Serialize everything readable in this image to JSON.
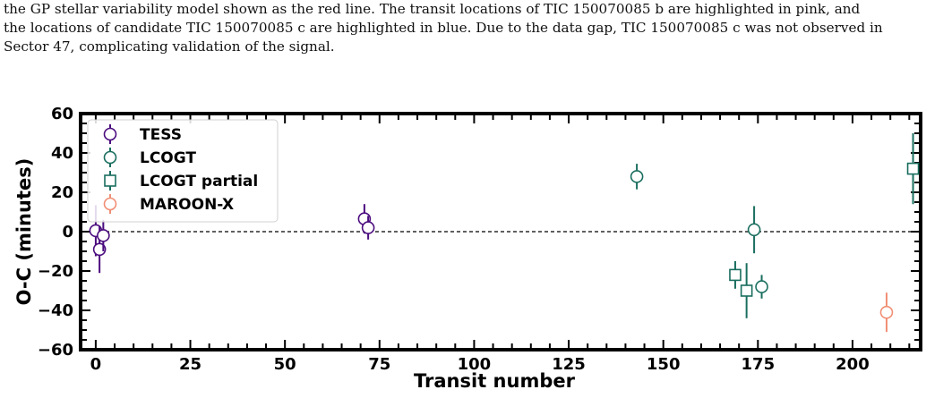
{
  "caption_lines": [
    "the GP stellar variability model shown as the red line. The transit locations of TIC 150070085 b are highlighted in pink, and",
    "the locations of candidate TIC 150070085 c are highlighted in blue. Due to the data gap, TIC 150070085 c was not observed in",
    "Sector 47, complicating validation of the signal."
  ],
  "colors": {
    "TESS": "#4b0c7e",
    "LCOGT": "#1a6e5f",
    "LCOGT partial": "#1a6e5f",
    "MAROON-X": "#f08f75",
    "reference_line": "#000000"
  },
  "chart_data": {
    "type": "scatter",
    "xlabel": "Transit number",
    "ylabel": "O-C (minutes)",
    "xlim": [
      -4,
      218
    ],
    "ylim": [
      -60,
      60
    ],
    "xticks": [
      0,
      25,
      50,
      75,
      100,
      125,
      150,
      175,
      200
    ],
    "yticks": [
      -60,
      -40,
      -20,
      0,
      20,
      40,
      60
    ],
    "legend_position": "top-left",
    "reference_line_y": 0,
    "series": [
      {
        "name": "TESS",
        "marker": "circle",
        "points": [
          {
            "x": 0,
            "y": 0.5,
            "err": 13
          },
          {
            "x": 1,
            "y": -9,
            "err": 12
          },
          {
            "x": 2,
            "y": -2,
            "err": 8
          },
          {
            "x": 71,
            "y": 6.5,
            "err": 7.5
          },
          {
            "x": 72,
            "y": 2,
            "err": 6
          }
        ]
      },
      {
        "name": "LCOGT",
        "marker": "circle",
        "points": [
          {
            "x": 143,
            "y": 28,
            "err": 6.5
          },
          {
            "x": 174,
            "y": 1,
            "err": 12
          },
          {
            "x": 176,
            "y": -28,
            "err": 6
          }
        ]
      },
      {
        "name": "LCOGT partial",
        "marker": "square",
        "points": [
          {
            "x": 169,
            "y": -22,
            "err": 7
          },
          {
            "x": 172,
            "y": -30,
            "err": 14
          },
          {
            "x": 216,
            "y": 32,
            "err": 18
          }
        ]
      },
      {
        "name": "MAROON-X",
        "marker": "circle",
        "points": [
          {
            "x": 209,
            "y": -41,
            "err": 10
          }
        ]
      }
    ]
  }
}
